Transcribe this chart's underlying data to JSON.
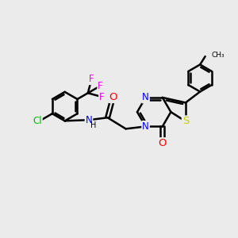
{
  "background_color": "#ebebeb",
  "bond_color": "#000000",
  "bond_width": 1.8,
  "atom_colors": {
    "N": "#0000ff",
    "O": "#ff0000",
    "S": "#cccc00",
    "Cl": "#00bb00",
    "F": "#ee00ee",
    "C": "#000000",
    "H": "#000000"
  },
  "font_size": 8.5,
  "font_size_small": 7.0
}
